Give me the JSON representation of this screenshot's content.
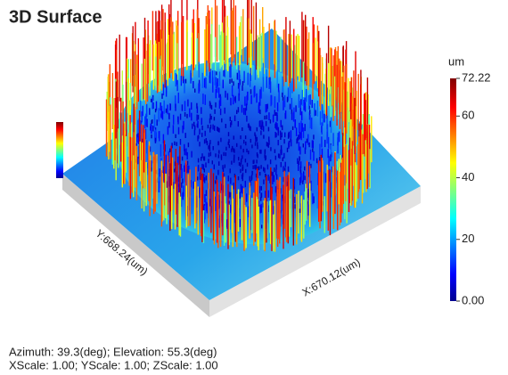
{
  "chart_data": {
    "type": "surface",
    "title": "3D Surface",
    "xlabel": "X:670.12(um)",
    "ylabel": "Y:668.24(um)",
    "zlabel": "um",
    "zlim": [
      0,
      72.22
    ],
    "zticks": [
      {
        "value": 0,
        "label": "0.00"
      },
      20,
      40,
      60,
      72.22
    ],
    "annotations": [
      "Azimuth: 39.3(deg); Elevation: 55.3(deg)",
      "XScale: 1.00; YScale: 1.00; ZScale: 1.00"
    ]
  }
}
